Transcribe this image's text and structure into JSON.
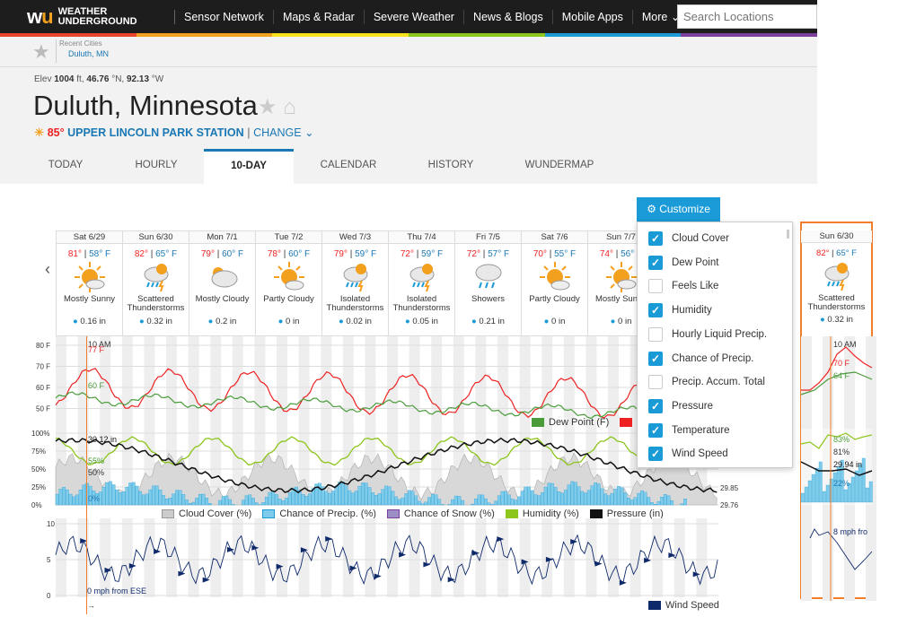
{
  "nav": {
    "logo_line1": "WEATHER",
    "logo_line2": "UNDERGROUND",
    "items": [
      "Sensor Network",
      "Maps & Radar",
      "Severe Weather",
      "News & Blogs",
      "Mobile Apps",
      "More"
    ],
    "search_placeholder": "Search Locations"
  },
  "recent": {
    "label": "Recent Cities",
    "city": "Duluth, MN"
  },
  "header": {
    "elev_label": "Elev",
    "elev_value": "1004",
    "elev_unit": "ft,",
    "lat": "46.76",
    "lat_unit": "°N,",
    "lon": "92.13",
    "lon_unit": "°W",
    "title": "Duluth, Minnesota",
    "temp": "85°",
    "station": "UPPER LINCOLN PARK STATION",
    "change": "CHANGE"
  },
  "tabs": [
    "TODAY",
    "HOURLY",
    "10-DAY",
    "CALENDAR",
    "HISTORY",
    "WUNDERMAP"
  ],
  "customize_label": "Customize",
  "days": [
    {
      "date": "Sat 6/29",
      "hi": "81°",
      "lo": "58° F",
      "cond": "Mostly Sunny",
      "precip": "0.16 in",
      "icon": "sun-icon"
    },
    {
      "date": "Sun 6/30",
      "hi": "82°",
      "lo": "65° F",
      "cond": "Scattered Thunderstorms",
      "precip": "0.32 in",
      "icon": "storm-icon"
    },
    {
      "date": "Mon 7/1",
      "hi": "79°",
      "lo": "60° F",
      "cond": "Mostly Cloudy",
      "precip": "0.2 in",
      "icon": "cloud-icon"
    },
    {
      "date": "Tue 7/2",
      "hi": "78°",
      "lo": "60° F",
      "cond": "Partly Cloudy",
      "precip": "0 in",
      "icon": "partly-cloudy-icon"
    },
    {
      "date": "Wed 7/3",
      "hi": "79°",
      "lo": "59° F",
      "cond": "Isolated Thunderstorms",
      "precip": "0.02 in",
      "icon": "storm-icon"
    },
    {
      "date": "Thu 7/4",
      "hi": "72°",
      "lo": "59° F",
      "cond": "Isolated Thunderstorms",
      "precip": "0.05 in",
      "icon": "storm-icon"
    },
    {
      "date": "Fri 7/5",
      "hi": "72°",
      "lo": "57° F",
      "cond": "Showers",
      "precip": "0.21 in",
      "icon": "rain-icon"
    },
    {
      "date": "Sat 7/6",
      "hi": "70°",
      "lo": "55° F",
      "cond": "Partly Cloudy",
      "precip": "0 in",
      "icon": "partly-cloudy-icon"
    },
    {
      "date": "Sun 7/7",
      "hi": "74°",
      "lo": "56° F",
      "cond": "Mostly Sunny",
      "precip": "0 in",
      "icon": "sun-icon"
    }
  ],
  "customize_options": [
    {
      "label": "Cloud Cover",
      "checked": true
    },
    {
      "label": "Dew Point",
      "checked": true
    },
    {
      "label": "Feels Like",
      "checked": false
    },
    {
      "label": "Humidity",
      "checked": true
    },
    {
      "label": "Hourly Liquid Precip.",
      "checked": false
    },
    {
      "label": "Chance of Precip.",
      "checked": true
    },
    {
      "label": "Precip. Accum. Total",
      "checked": false
    },
    {
      "label": "Pressure",
      "checked": true
    },
    {
      "label": "Temperature",
      "checked": true
    },
    {
      "label": "Wind Speed",
      "checked": true
    }
  ],
  "chart_temp": {
    "yticks": [
      "80 F",
      "70 F",
      "60 F",
      "50 F"
    ],
    "time_label": "10 AM",
    "temp_label": "77 F",
    "dew_label": "60 F",
    "legend": [
      "Dew Point (F)"
    ]
  },
  "chart_mid": {
    "yticks": [
      "100%",
      "75%",
      "50%",
      "25%",
      "0%"
    ],
    "pressure_ticks": [
      "29.85",
      "29.76"
    ],
    "pressure_label": "30.12 in",
    "humidity_label": "55%",
    "cloud_label": "50%",
    "precip_label": "0%",
    "legend": [
      "Cloud Cover (%)",
      "Chance of Precip. (%)",
      "Chance of Snow (%)",
      "Humidity (%)",
      "Pressure (in)"
    ]
  },
  "chart_wind": {
    "yticks": [
      "10",
      "5",
      "0"
    ],
    "wind_label": "0 mph from ESE",
    "legend": "Wind Speed"
  },
  "right_panel": {
    "date": "Sun 6/30",
    "hi": "82°",
    "lo": "65° F",
    "cond": "Scattered Thunderstorms",
    "precip": "0.32 in",
    "time": "10 AM",
    "temp": "70 F",
    "dew": "64 F",
    "humidity": "83%",
    "cloud": "81%",
    "pressure": "29.94 in",
    "precip_chance": "22%",
    "wind": "8 mph fro"
  },
  "colors": {
    "accent": "#1a9bd8",
    "temp": "#e22",
    "dew": "#4a9c3a",
    "humidity": "#8cc51b",
    "cloud": "#bbbbbb",
    "precip": "#5bbde4",
    "pressure": "#111111",
    "wind": "#0f2a6b",
    "highlight": "#f27d2b"
  }
}
